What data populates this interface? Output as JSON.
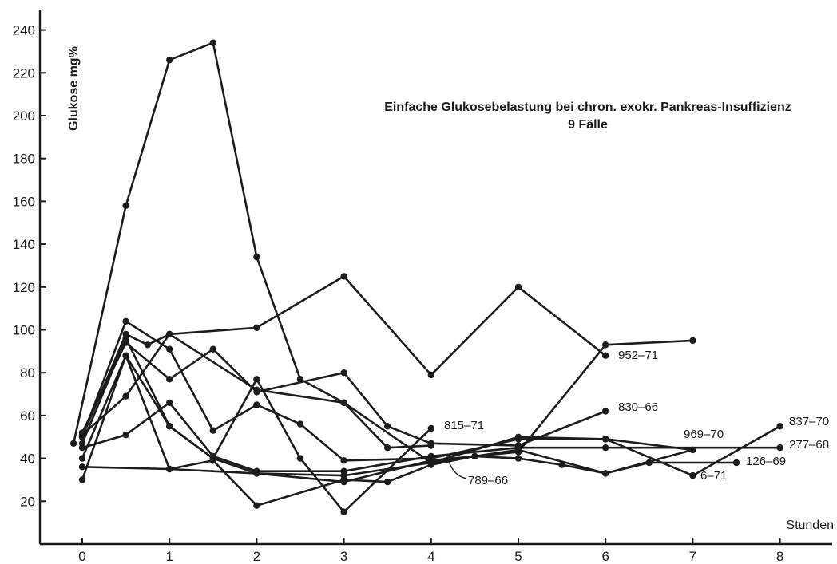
{
  "chart_data": {
    "type": "line",
    "title": "Einfache Glukosebelastung bei chron. exokr. Pankreas-Insuffizienz",
    "subtitle": "9 Fälle",
    "xlabel": "Stunden",
    "ylabel": "Glukose mg%",
    "xlim": [
      -0.35,
      8.6
    ],
    "ylim": [
      0,
      245
    ],
    "x_ticks": [
      0,
      1,
      2,
      3,
      4,
      5,
      6,
      7,
      8
    ],
    "y_ticks": [
      20,
      40,
      60,
      80,
      100,
      120,
      140,
      160,
      180,
      200,
      220,
      240
    ],
    "grid": false,
    "series": [
      {
        "name": "",
        "x": [
          -0.1,
          0.5,
          1,
          1.5,
          2,
          2.5,
          3,
          3.5,
          4
        ],
        "y": [
          47,
          158,
          226,
          234,
          134,
          77,
          66,
          45,
          46
        ]
      },
      {
        "name": "837-70",
        "x": [
          0,
          0.5,
          1,
          1.5,
          2,
          2.5,
          3,
          4,
          5,
          6,
          7,
          8
        ],
        "y": [
          50,
          104,
          91,
          53,
          65,
          56,
          39,
          40,
          49,
          49,
          32,
          55
        ]
      },
      {
        "name": "952-71",
        "x": [
          0,
          0.5,
          0.75,
          1,
          2,
          3,
          4,
          5,
          6
        ],
        "y": [
          50,
          98,
          93,
          98,
          101,
          125,
          79,
          120,
          88
        ]
      },
      {
        "name": "830-66",
        "x": [
          0,
          0.5,
          1,
          1.5,
          2,
          3,
          3.5,
          4,
          5,
          6
        ],
        "y": [
          52,
          94,
          77,
          91,
          71,
          80,
          55,
          47,
          46,
          62
        ]
      },
      {
        "name": "815-71",
        "x": [
          0,
          0.5,
          1,
          1.5,
          2,
          2.5,
          3,
          4
        ],
        "y": [
          47,
          96,
          55,
          40,
          77,
          40,
          15,
          54
        ]
      },
      {
        "name": "969-70",
        "x": [
          0,
          0.5,
          1,
          2,
          3,
          4,
          5,
          6,
          7
        ],
        "y": [
          51,
          69,
          98,
          72,
          66,
          38,
          50,
          49,
          44
        ]
      },
      {
        "name": "277-68",
        "x": [
          0,
          0.5,
          1,
          1.5,
          2,
          3,
          4,
          5,
          6,
          8
        ],
        "y": [
          45,
          51,
          66,
          41,
          34,
          34,
          41,
          45,
          45,
          45
        ]
      },
      {
        "name": "126-69",
        "x": [
          0,
          0.5,
          1,
          1.5,
          2,
          3,
          3.5,
          4,
          4.5,
          5,
          5.5,
          6,
          6.5,
          7.5
        ],
        "y": [
          40,
          88,
          35,
          39,
          18,
          30,
          29,
          37,
          41,
          40,
          37,
          33,
          38,
          38
        ]
      },
      {
        "name": "789-66",
        "x": [
          0,
          0.5,
          1,
          1.5,
          2,
          3,
          4,
          5,
          6,
          7
        ],
        "y": [
          30,
          88,
          55,
          40,
          33,
          29,
          39,
          43,
          93,
          95
        ]
      },
      {
        "name": "6-71",
        "x": [
          0,
          1,
          2,
          3,
          4,
          5,
          6,
          7
        ],
        "y": [
          36,
          35,
          33,
          32,
          38,
          44,
          33,
          44
        ]
      }
    ],
    "labels": [
      "952–71",
      "830–66",
      "815–71",
      "837–70",
      "969–70",
      "277–68",
      "126–69",
      "6–71",
      "789–66"
    ]
  }
}
